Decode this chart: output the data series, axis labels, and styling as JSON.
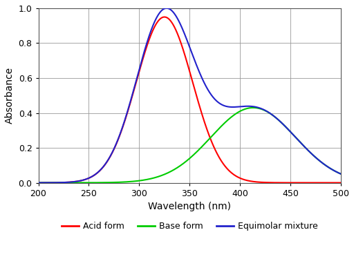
{
  "title": "",
  "xlabel": "Wavelength (nm)",
  "ylabel": "Absorbance",
  "xlim": [
    200,
    500
  ],
  "ylim": [
    0,
    1.0
  ],
  "xticks": [
    200,
    250,
    300,
    350,
    400,
    450,
    500
  ],
  "yticks": [
    0,
    0.2,
    0.4,
    0.6,
    0.8,
    1
  ],
  "acid_color": "#ff0000",
  "base_color": "#00cc00",
  "mixture_color": "#2222cc",
  "legend": [
    {
      "label": "Acid form",
      "color": "#ff0000"
    },
    {
      "label": "Base form",
      "color": "#00cc00"
    },
    {
      "label": "Equimolar mixture",
      "color": "#2222cc"
    }
  ],
  "background_color": "#ffffff",
  "grid_color": "#999999",
  "acid_peak": 325,
  "acid_sigma": 28,
  "acid_amp": 0.95,
  "base_peak": 410,
  "base_sigma": 40,
  "base_amp": 0.42,
  "linewidth": 1.5
}
